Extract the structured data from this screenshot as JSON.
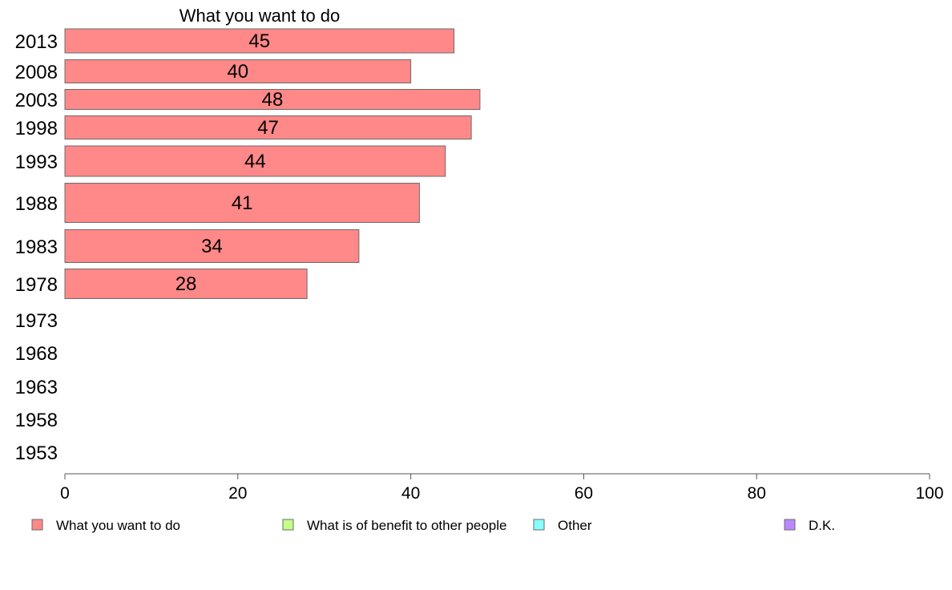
{
  "chart_data": {
    "type": "bar",
    "orientation": "horizontal",
    "title": "What you want to do",
    "categories": [
      "2013",
      "2008",
      "2003",
      "1998",
      "1993",
      "1988",
      "1983",
      "1978",
      "1973",
      "1968",
      "1963",
      "1958",
      "1953"
    ],
    "series": [
      {
        "name": "What you want to do",
        "color": "#ff8888",
        "values": [
          45,
          40,
          48,
          47,
          44,
          41,
          34,
          28,
          null,
          null,
          null,
          null,
          null
        ]
      },
      {
        "name": "What is of benefit to other people",
        "color": "#c4ff88",
        "values": [
          null,
          null,
          null,
          null,
          null,
          null,
          null,
          null,
          null,
          null,
          null,
          null,
          null
        ]
      },
      {
        "name": "Other",
        "color": "#88ffff",
        "values": [
          null,
          null,
          null,
          null,
          null,
          null,
          null,
          null,
          null,
          null,
          null,
          null,
          null
        ]
      },
      {
        "name": "D.K.",
        "color": "#bb88ff",
        "values": [
          null,
          null,
          null,
          null,
          null,
          null,
          null,
          null,
          null,
          null,
          null,
          null,
          null
        ]
      }
    ],
    "xlim": [
      0,
      100
    ],
    "xticks": [
      0,
      20,
      40,
      60,
      80,
      100
    ],
    "legend_position": "bottom",
    "grid": false
  }
}
